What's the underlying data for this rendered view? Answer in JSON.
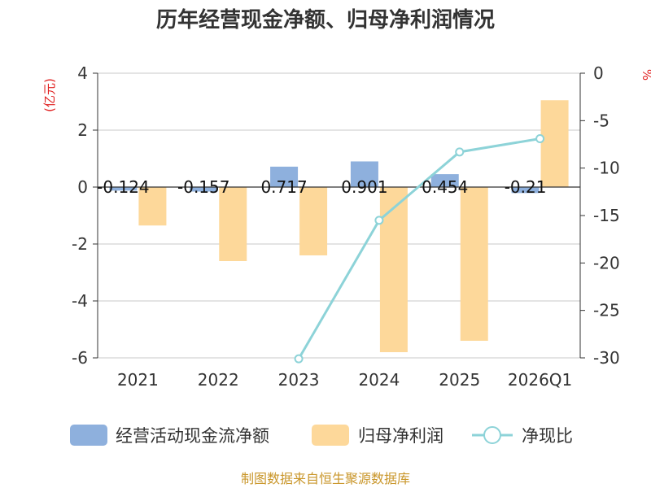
{
  "chart_data": {
    "type": "bar+line",
    "title": "历年经营现金净额、归母净利润情况",
    "categories": [
      "2021",
      "2022",
      "2023",
      "2024",
      "2025",
      "2026Q1"
    ],
    "left_axis": {
      "unit_label": "(亿元)",
      "ylim": [
        -6,
        4
      ],
      "ticks": [
        4,
        2,
        0,
        -2,
        -4,
        -6
      ]
    },
    "right_axis": {
      "unit_label": "%",
      "ylim": [
        -30,
        0
      ],
      "ticks": [
        0,
        -5,
        -10,
        -15,
        -20,
        -25,
        -30
      ]
    },
    "series": [
      {
        "name": "经营活动现金流净额",
        "type": "bar",
        "axis": "left",
        "color": "#8eb0dd",
        "values": [
          -0.124,
          -0.157,
          0.717,
          0.901,
          0.454,
          -0.21
        ],
        "labels": [
          "-0.124",
          "-0.157",
          "0.717",
          "0.901",
          "0.454",
          "-0.21"
        ]
      },
      {
        "name": "归母净利润",
        "type": "bar",
        "axis": "left",
        "color": "#fdd89a",
        "values": [
          -1.35,
          -2.6,
          -2.4,
          -5.8,
          -5.4,
          3.05
        ]
      },
      {
        "name": "净现比",
        "type": "line",
        "axis": "right",
        "color": "#8dd3d8",
        "values": [
          null,
          null,
          -30.1,
          -15.5,
          -8.3,
          -6.9
        ]
      }
    ],
    "source": "制图数据来自恒生聚源数据库"
  }
}
